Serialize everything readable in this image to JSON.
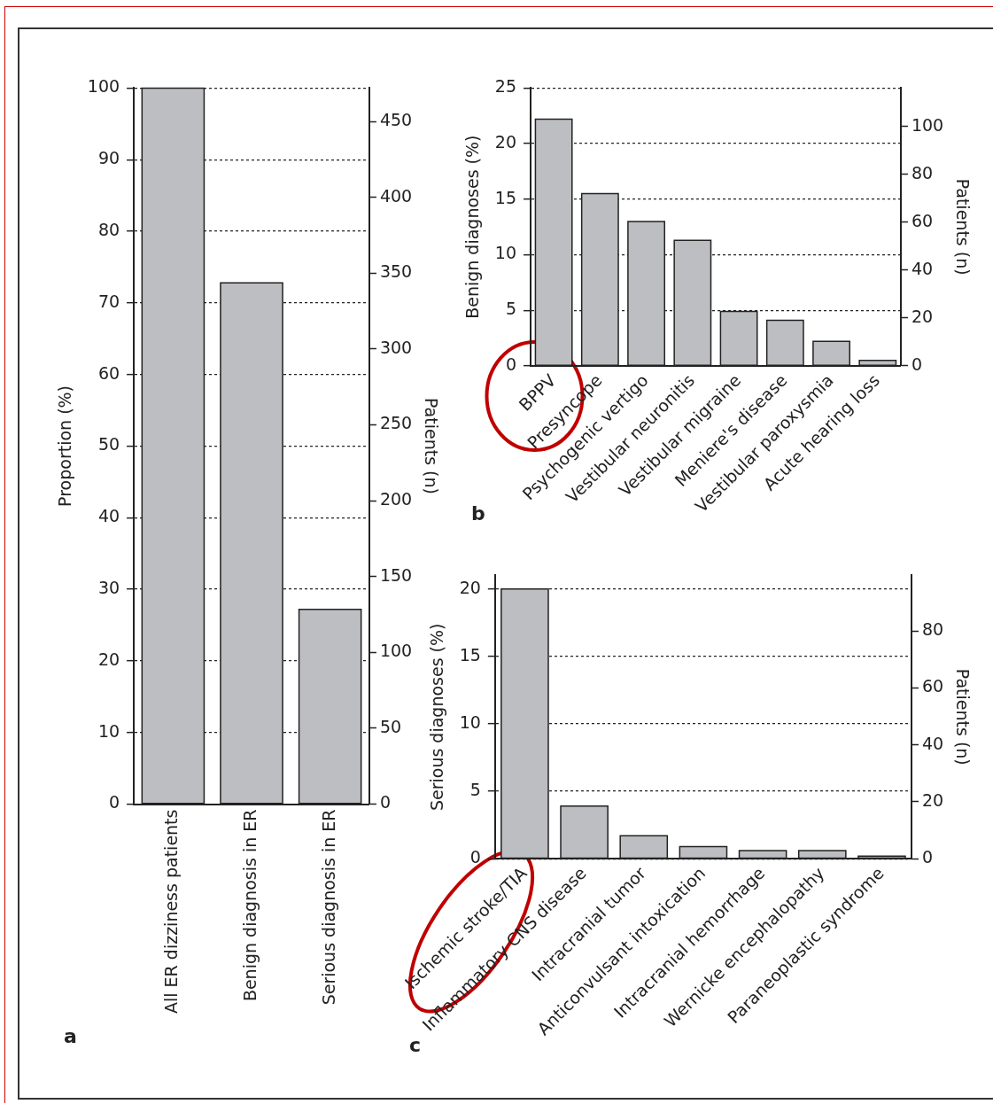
{
  "chart_data": [
    {
      "type": "bar",
      "categories": [
        "All ER dizziness patients",
        "Benign diagnosis in ER",
        "Serious diagnosis in ER"
      ],
      "values": [
        100,
        72.8,
        27.2
      ],
      "color": "#bdbec2",
      "ylabel": "Proportion (%)",
      "y2label": "Patients (n)",
      "ylim": [
        0,
        100
      ],
      "yticks": [
        0,
        10,
        20,
        30,
        40,
        50,
        60,
        70,
        80,
        90,
        100
      ],
      "y2lim": [
        0,
        472
      ],
      "y2ticks": [
        0,
        50,
        100,
        150,
        200,
        250,
        300,
        350,
        400,
        450
      ],
      "grid": "y",
      "annotations": [
        "a"
      ]
    },
    {
      "type": "bar",
      "categories": [
        "BPPV",
        "Presyncope",
        "Psychogenic vertigo",
        "Vestibular neuronitis",
        "Vestibular migraine",
        "Meniere's disease",
        "Vestibular paroxysmia",
        "Acute hearing loss"
      ],
      "values": [
        22.2,
        15.5,
        13.0,
        11.3,
        4.9,
        4.1,
        2.2,
        0.5
      ],
      "color": "#bdbec2",
      "ylabel": "Benign diagnoses (%)",
      "y2label": "Patients (n)",
      "ylim": [
        0,
        25
      ],
      "yticks": [
        0,
        5,
        10,
        15,
        20,
        25
      ],
      "y2lim": [
        0,
        116
      ],
      "y2ticks": [
        0,
        20,
        40,
        60,
        80,
        100
      ],
      "grid": "y",
      "annotations": [
        "b"
      ]
    },
    {
      "type": "bar",
      "categories": [
        "Ischemic stroke/TIA",
        "Inflammatory CNS disease",
        "Intracranial tumor",
        "Anticonvulsant intoxication",
        "Intracranial hemorrhage",
        "Wernicke encephalopathy",
        "Paraneoplastic syndrome"
      ],
      "values": [
        20.0,
        3.9,
        1.7,
        0.9,
        0.6,
        0.6,
        0.2
      ],
      "color": "#bdbec2",
      "ylabel": "Serious diagnoses (%)",
      "y2label": "Patients (n)",
      "ylim": [
        0,
        21
      ],
      "yticks": [
        0,
        5,
        10,
        15,
        20
      ],
      "y2lim": [
        0,
        99.5
      ],
      "y2ticks": [
        0,
        20,
        40,
        60,
        80
      ],
      "grid": "y",
      "annotations": [
        "c"
      ]
    }
  ]
}
